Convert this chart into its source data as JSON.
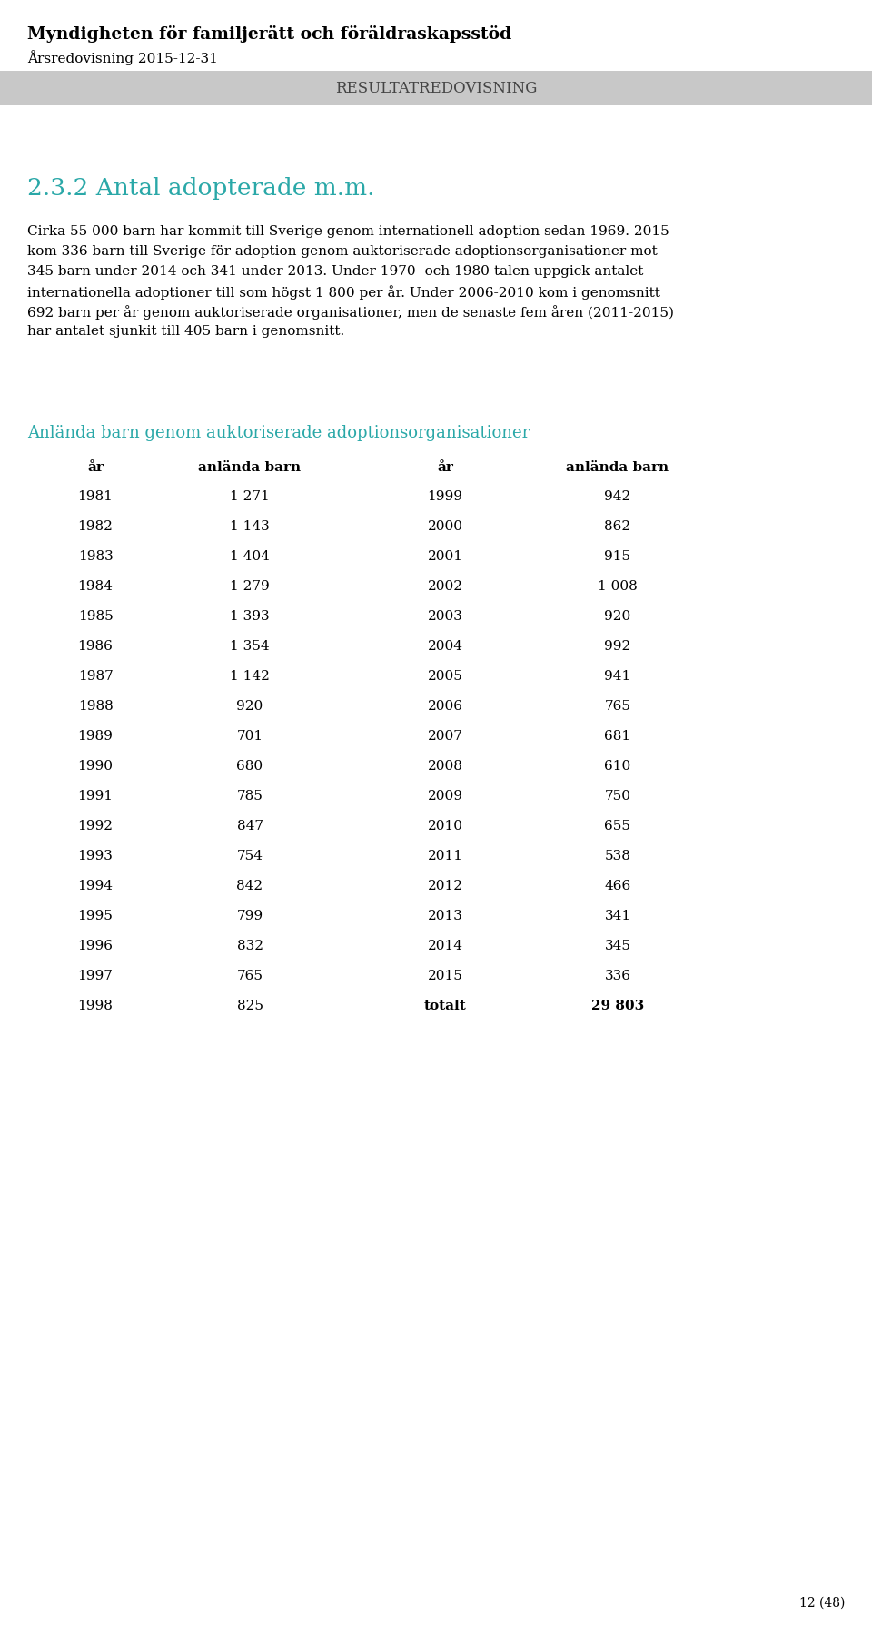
{
  "header_bold": "Myndigheten för familjerätt och föräldraskapsstöd",
  "header_normal": "Årsredovisning 2015-12-31",
  "banner_text": "RESULTATREDOVISNING",
  "banner_bg": "#c8c8c8",
  "section_title": "2.3.2 Antal adopterade m.m.",
  "section_title_color": "#2aa8a8",
  "table_title": "Anlända barn genom auktoriserade adoptionsorganisationer",
  "table_title_color": "#2aa8a8",
  "body_lines": [
    "Cirka 55 000 barn har kommit till Sverige genom internationell adoption sedan 1969. 2015",
    "kom 336 barn till Sverige för adoption genom auktoriserade adoptionsorganisationer mot",
    "345 barn under 2014 och 341 under 2013. Under 1970- och 1980-talen uppgick antalet",
    "internationella adoptioner till som högst 1 800 per år. Under 2006-2010 kom i genomsnitt",
    "692 barn per år genom auktoriserade organisationer, men de senaste fem åren (2011-2015)",
    "har antalet sjunkit till 405 barn i genomsnitt."
  ],
  "left_data": [
    [
      "1981",
      "1 271"
    ],
    [
      "1982",
      "1 143"
    ],
    [
      "1983",
      "1 404"
    ],
    [
      "1984",
      "1 279"
    ],
    [
      "1985",
      "1 393"
    ],
    [
      "1986",
      "1 354"
    ],
    [
      "1987",
      "1 142"
    ],
    [
      "1988",
      "920"
    ],
    [
      "1989",
      "701"
    ],
    [
      "1990",
      "680"
    ],
    [
      "1991",
      "785"
    ],
    [
      "1992",
      "847"
    ],
    [
      "1993",
      "754"
    ],
    [
      "1994",
      "842"
    ],
    [
      "1995",
      "799"
    ],
    [
      "1996",
      "832"
    ],
    [
      "1997",
      "765"
    ],
    [
      "1998",
      "825"
    ]
  ],
  "right_data": [
    [
      "1999",
      "942"
    ],
    [
      "2000",
      "862"
    ],
    [
      "2001",
      "915"
    ],
    [
      "2002",
      "1 008"
    ],
    [
      "2003",
      "920"
    ],
    [
      "2004",
      "992"
    ],
    [
      "2005",
      "941"
    ],
    [
      "2006",
      "765"
    ],
    [
      "2007",
      "681"
    ],
    [
      "2008",
      "610"
    ],
    [
      "2009",
      "750"
    ],
    [
      "2010",
      "655"
    ],
    [
      "2011",
      "538"
    ],
    [
      "2012",
      "466"
    ],
    [
      "2013",
      "341"
    ],
    [
      "2014",
      "345"
    ],
    [
      "2015",
      "336"
    ],
    [
      "totalt",
      "29 803"
    ]
  ],
  "page_number": "12 (48)",
  "background_color": "#ffffff"
}
